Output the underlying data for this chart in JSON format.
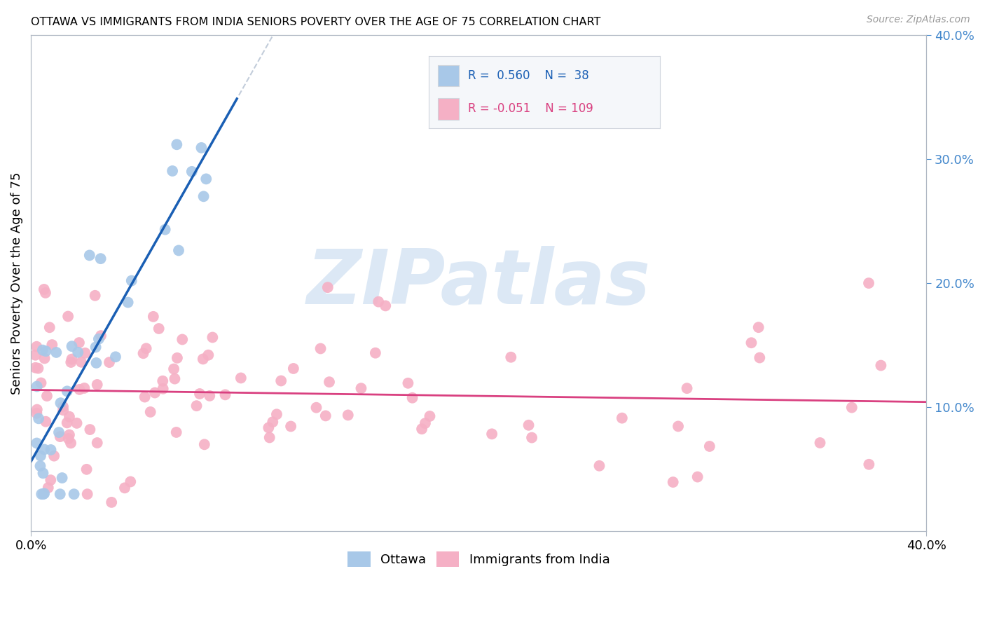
{
  "title": "OTTAWA VS IMMIGRANTS FROM INDIA SENIORS POVERTY OVER THE AGE OF 75 CORRELATION CHART",
  "source": "Source: ZipAtlas.com",
  "ylabel": "Seniors Poverty Over the Age of 75",
  "xlim": [
    0.0,
    0.4
  ],
  "ylim": [
    0.0,
    0.4
  ],
  "yticks_right": [
    0.1,
    0.2,
    0.3,
    0.4
  ],
  "ytick_labels_right": [
    "10.0%",
    "20.0%",
    "30.0%",
    "40.0%"
  ],
  "color_ottawa_fill": "#a8c8e8",
  "color_india_fill": "#f5b0c5",
  "color_line_ottawa": "#1a5fb4",
  "color_line_india": "#d94080",
  "color_dashed": "#b8c4d4",
  "color_rn_ottawa": "#1a5fb4",
  "color_rn_india": "#d94080",
  "watermark_color": "#dce8f5",
  "grid_color": "#d8dde8",
  "axis_color": "#b0b8c4",
  "right_tick_color": "#4488cc",
  "legend_box_color": "#f5f7fa",
  "legend_border_color": "#d0d5dd",
  "bottom_labels": [
    "Ottawa",
    "Immigrants from India"
  ],
  "ott_slope": 2.8,
  "ott_intercept": 0.06,
  "ind_slope": -0.025,
  "ind_intercept": 0.115
}
